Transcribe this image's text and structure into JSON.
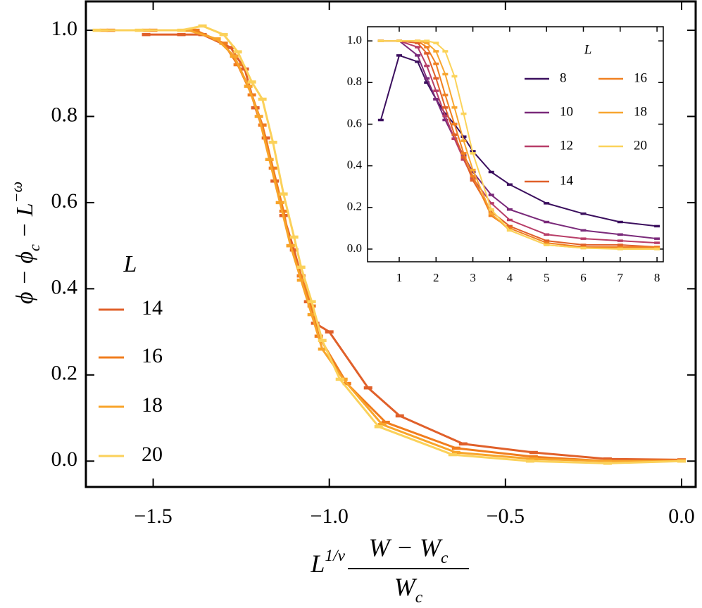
{
  "chart_data": [
    {
      "type": "line",
      "x_label": {
        "parts": [
          {
            "text": "L"
          },
          {
            "text": "1/ν",
            "shift": "super"
          }
        ],
        "numerator": [
          {
            "text": "W − W"
          },
          {
            "text": "c",
            "shift": "sub"
          }
        ],
        "denominator": [
          {
            "text": "W"
          },
          {
            "text": "c",
            "shift": "sub"
          }
        ]
      },
      "y_label": {
        "parts": [
          {
            "text": "ϕ − ϕ"
          },
          {
            "text": "c",
            "shift": "sub"
          },
          {
            "text": " − L"
          },
          {
            "text": "−ω",
            "shift": "super"
          }
        ]
      },
      "xlim": [
        -1.691,
        0.04
      ],
      "ylim": [
        -0.06,
        1.067
      ],
      "xticks": [
        {
          "value": -1.5,
          "label": "−1.5"
        },
        {
          "value": -1.0,
          "label": "−1.0"
        },
        {
          "value": -0.5,
          "label": "−0.5"
        },
        {
          "value": 0,
          "label": "0.0"
        }
      ],
      "yticks": [
        {
          "value": 0,
          "label": "0.0"
        },
        {
          "value": 0.2,
          "label": "0.2"
        },
        {
          "value": 0.4,
          "label": "0.4"
        },
        {
          "value": 0.6,
          "label": "0.6"
        },
        {
          "value": 0.8,
          "label": "0.8"
        },
        {
          "value": 1.0,
          "label": "1.0"
        }
      ],
      "legend_title": "L",
      "legend_loc": "center left",
      "series": [
        {
          "name": "14",
          "color": "#e0602a",
          "x": [
            -1.52,
            -1.42,
            -1.36,
            -1.28,
            -1.24,
            -1.21,
            -1.18,
            -1.155,
            -1.13,
            -1.1,
            -1.08,
            -1.06,
            -1.04,
            -1.0,
            -0.89,
            -0.8,
            -0.62,
            -0.42,
            -0.21,
            0.0
          ],
          "values": [
            0.99,
            0.99,
            0.99,
            0.96,
            0.91,
            0.82,
            0.75,
            0.65,
            0.57,
            0.49,
            0.43,
            0.37,
            0.32,
            0.3,
            0.17,
            0.105,
            0.04,
            0.02,
            0.005,
            0.003
          ]
        },
        {
          "name": "16",
          "color": "#f07d1e",
          "x": [
            -1.62,
            -1.5,
            -1.38,
            -1.3,
            -1.26,
            -1.22,
            -1.19,
            -1.16,
            -1.13,
            -1.11,
            -1.08,
            -1.05,
            -1.03,
            -0.95,
            -0.84,
            -0.64,
            -0.42,
            -0.21,
            0.0
          ],
          "values": [
            1.0,
            1.0,
            1.0,
            0.97,
            0.92,
            0.85,
            0.78,
            0.68,
            0.58,
            0.5,
            0.43,
            0.36,
            0.29,
            0.18,
            0.09,
            0.03,
            0.01,
            0.0,
            0.002
          ]
        },
        {
          "name": "18",
          "color": "#f8a42a",
          "x": [
            -1.64,
            -1.52,
            -1.4,
            -1.32,
            -1.27,
            -1.23,
            -1.2,
            -1.17,
            -1.14,
            -1.11,
            -1.08,
            -1.05,
            -1.02,
            -0.96,
            -0.85,
            -0.64,
            -0.42,
            -0.21,
            0.0
          ],
          "values": [
            1.0,
            1.0,
            1.0,
            0.98,
            0.94,
            0.87,
            0.8,
            0.7,
            0.6,
            0.5,
            0.42,
            0.34,
            0.26,
            0.19,
            0.085,
            0.02,
            0.005,
            0.0,
            0.0
          ]
        },
        {
          "name": "20",
          "color": "#fbd15a",
          "x": [
            -1.66,
            -1.54,
            -1.42,
            -1.36,
            -1.3,
            -1.26,
            -1.22,
            -1.19,
            -1.16,
            -1.13,
            -1.1,
            -1.08,
            -1.05,
            -1.02,
            -0.97,
            -0.86,
            -0.65,
            -0.43,
            -0.21,
            0.0
          ],
          "values": [
            1.0,
            1.0,
            1.0,
            1.01,
            0.99,
            0.95,
            0.88,
            0.84,
            0.74,
            0.62,
            0.52,
            0.45,
            0.37,
            0.28,
            0.19,
            0.08,
            0.015,
            0.0,
            -0.005,
            0.0
          ]
        }
      ]
    },
    {
      "type": "line",
      "xlim": [
        0.14,
        8.17
      ],
      "ylim": [
        -0.061,
        1.068
      ],
      "xticks": [
        1,
        2,
        3,
        4,
        5,
        6,
        7,
        8
      ],
      "yticks": [
        {
          "value": 0,
          "label": "0.0"
        },
        {
          "value": 0.2,
          "label": "0.2"
        },
        {
          "value": 0.4,
          "label": "0.4"
        },
        {
          "value": 0.6,
          "label": "0.6"
        },
        {
          "value": 0.8,
          "label": "0.8"
        },
        {
          "value": 1.0,
          "label": "1.0"
        }
      ],
      "legend_title": "L",
      "legend_loc": "upper right",
      "x": [
        0.5,
        1,
        1.5,
        1.75,
        2,
        2.25,
        2.5,
        2.75,
        3,
        3.5,
        4,
        5,
        6,
        7,
        8
      ],
      "series": [
        {
          "name": "8",
          "color": "#3b0f5e",
          "values": [
            0.62,
            0.93,
            0.9,
            0.8,
            0.72,
            0.65,
            0.6,
            0.54,
            0.47,
            0.37,
            0.31,
            0.22,
            0.17,
            0.13,
            0.11
          ]
        },
        {
          "name": "10",
          "color": "#7a2a7a",
          "values": [
            1.0,
            1.0,
            0.93,
            0.82,
            0.72,
            0.62,
            0.53,
            0.45,
            0.37,
            0.26,
            0.19,
            0.13,
            0.09,
            0.07,
            0.05
          ]
        },
        {
          "name": "12",
          "color": "#b83e68",
          "values": [
            1.0,
            1.0,
            0.97,
            0.88,
            0.76,
            0.64,
            0.53,
            0.43,
            0.34,
            0.22,
            0.14,
            0.07,
            0.05,
            0.04,
            0.03
          ]
        },
        {
          "name": "14",
          "color": "#e0602a",
          "values": [
            1.0,
            1.0,
            0.99,
            0.94,
            0.82,
            0.68,
            0.55,
            0.44,
            0.33,
            0.18,
            0.11,
            0.04,
            0.02,
            0.02,
            0.01
          ]
        },
        {
          "name": "16",
          "color": "#f08020",
          "values": [
            1.0,
            1.0,
            1.0,
            0.97,
            0.89,
            0.74,
            0.6,
            0.46,
            0.35,
            0.16,
            0.1,
            0.03,
            0.01,
            0.01,
            0.01
          ]
        },
        {
          "name": "18",
          "color": "#f8a630",
          "values": [
            1.0,
            1.0,
            1.0,
            0.99,
            0.95,
            0.84,
            0.68,
            0.52,
            0.38,
            0.17,
            0.09,
            0.02,
            0.005,
            0.003,
            0.003
          ]
        },
        {
          "name": "20",
          "color": "#fbd35a",
          "values": [
            1.0,
            1.0,
            1.0,
            1.0,
            0.99,
            0.95,
            0.83,
            0.65,
            0.46,
            0.19,
            0.09,
            0.02,
            0.005,
            0.0,
            0.0
          ]
        }
      ]
    }
  ]
}
